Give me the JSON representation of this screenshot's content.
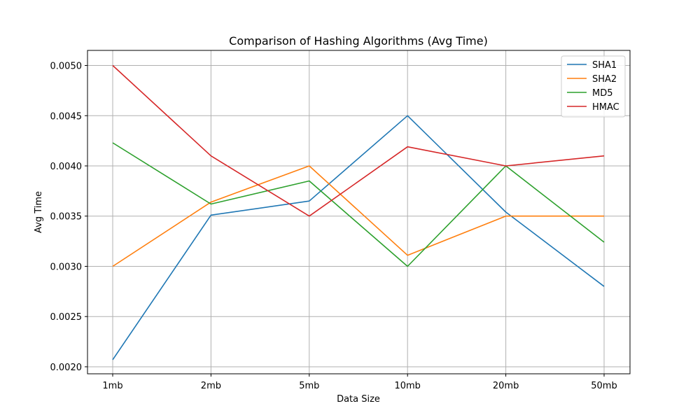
{
  "chart_data": {
    "type": "line",
    "title": "Comparison of Hashing Algorithms (Avg Time)",
    "xlabel": "Data Size",
    "ylabel": "Avg Time",
    "categories": [
      "1mb",
      "2mb",
      "5mb",
      "10mb",
      "20mb",
      "50mb"
    ],
    "ylim": [
      0.00193,
      0.00515
    ],
    "yticks": [
      0.002,
      0.0025,
      0.003,
      0.0035,
      0.004,
      0.0045,
      0.005
    ],
    "ytick_labels": [
      "0.0020",
      "0.0025",
      "0.0030",
      "0.0035",
      "0.0040",
      "0.0045",
      "0.0050"
    ],
    "grid": true,
    "legend_position": "top-right",
    "series": [
      {
        "name": "SHA1",
        "color": "#1f77b4",
        "values": [
          0.00207,
          0.00351,
          0.00365,
          0.0045,
          0.00354,
          0.0028
        ]
      },
      {
        "name": "SHA2",
        "color": "#ff7f0e",
        "values": [
          0.003,
          0.00364,
          0.004,
          0.00311,
          0.0035,
          0.0035
        ]
      },
      {
        "name": "MD5",
        "color": "#2ca02c",
        "values": [
          0.00423,
          0.00362,
          0.00385,
          0.003,
          0.004,
          0.00324
        ]
      },
      {
        "name": "HMAC",
        "color": "#d62728",
        "values": [
          0.005,
          0.0041,
          0.0035,
          0.00419,
          0.004,
          0.0041
        ]
      }
    ]
  }
}
